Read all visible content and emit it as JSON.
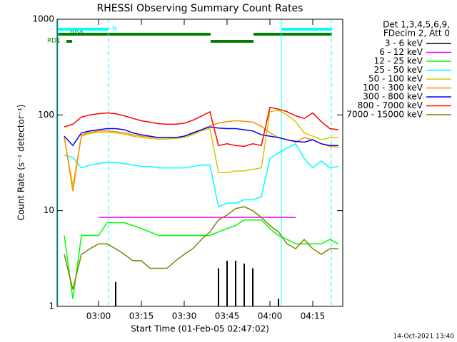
{
  "chart_data": {
    "type": "line",
    "title": "RHESSI Observing Summary Count Rates",
    "xlabel": "Start Time (01-Feb-05 02:47:02)",
    "ylabel": "Count Rate (s⁻¹ detector⁻¹)",
    "info": [
      "Det 1,3,4,5,6,9,",
      "FDecim 2, Att 0"
    ],
    "flags": [
      "N",
      "RD0",
      "RD1"
    ],
    "footer": "14-Oct-2021 13:40",
    "log_y": true,
    "xlim": [
      165.5,
      265.5
    ],
    "xticks": [
      {
        "value": 180,
        "label": "03:00"
      },
      {
        "value": 195,
        "label": "03:15"
      },
      {
        "value": 210,
        "label": "03:30"
      },
      {
        "value": 225,
        "label": "03:45"
      },
      {
        "value": 240,
        "label": "04:00"
      },
      {
        "value": 255,
        "label": "04:15"
      }
    ],
    "ylim": [
      1,
      1000
    ],
    "yticks": [
      1,
      10,
      100,
      1000
    ],
    "x": [
      168,
      171,
      174,
      177,
      180,
      183,
      186,
      189,
      192,
      195,
      198,
      201,
      204,
      207,
      210,
      213,
      216,
      219,
      222,
      225,
      228,
      231,
      234,
      237,
      240,
      243,
      246,
      249,
      252,
      255,
      258,
      261,
      264
    ],
    "series": [
      {
        "name": "3 - 6 keV",
        "color": "#000000",
        "draw": "spikes",
        "values": [
          null,
          null,
          null,
          null,
          null,
          null,
          1.8,
          null,
          null,
          null,
          null,
          null,
          null,
          null,
          null,
          null,
          null,
          null,
          2.5,
          3,
          3,
          2.8,
          2.5,
          null,
          null,
          1.2,
          null,
          null,
          null,
          null,
          null,
          null,
          null
        ]
      },
      {
        "name": "6 - 12 keV",
        "color": "#ff00ff",
        "values": [
          null,
          null,
          null,
          null,
          8.5,
          8.5,
          8.5,
          8.5,
          8.5,
          8.5,
          8.5,
          8.5,
          8.5,
          8.5,
          8.5,
          8.5,
          8.5,
          8.5,
          8.5,
          8.5,
          8.5,
          8.5,
          8.5,
          8.5,
          8.5,
          8.5,
          8.5,
          8.5,
          null,
          null,
          null,
          null,
          null
        ]
      },
      {
        "name": "12 - 25 keV",
        "color": "#00ff00",
        "values": [
          5.5,
          1.2,
          5.5,
          5.5,
          5.5,
          7.5,
          7.5,
          7.5,
          7,
          6.5,
          6,
          5.5,
          5.5,
          5.5,
          5.5,
          5.5,
          5.5,
          5.5,
          6,
          6.5,
          7,
          8,
          8,
          8,
          6.5,
          5.5,
          5,
          4.5,
          4.5,
          4.5,
          4.5,
          5,
          4.5
        ]
      },
      {
        "name": "25 - 50 keV",
        "color": "#00ffff",
        "values": [
          38,
          36,
          28,
          30,
          31,
          32,
          32,
          31,
          30,
          29,
          29,
          28,
          28,
          28,
          28,
          29,
          30,
          30,
          11,
          12,
          12,
          13,
          13,
          14,
          35,
          40,
          45,
          50,
          35,
          28,
          33,
          28,
          29
        ]
      },
      {
        "name": "50 - 100 keV",
        "color": "#d4c800",
        "values": [
          58,
          18,
          60,
          64,
          66,
          66,
          65,
          63,
          60,
          58,
          57,
          56,
          56,
          57,
          58,
          62,
          68,
          72,
          25,
          25,
          26,
          26,
          27,
          28,
          108,
          112,
          100,
          85,
          65,
          60,
          55,
          58,
          58
        ]
      },
      {
        "name": "100 - 300 keV",
        "color": "#ff8c00",
        "values": [
          60,
          16,
          62,
          66,
          68,
          68,
          67,
          65,
          62,
          60,
          59,
          58,
          58,
          58,
          60,
          64,
          70,
          77,
          82,
          85,
          87,
          86,
          84,
          76,
          65,
          58,
          55,
          52,
          58,
          55,
          50,
          47,
          46
        ]
      },
      {
        "name": "300 - 800 keV",
        "color": "#0000ff",
        "values": [
          60,
          48,
          65,
          68,
          70,
          72,
          72,
          70,
          65,
          62,
          60,
          58,
          58,
          58,
          60,
          65,
          70,
          75,
          73,
          72,
          72,
          70,
          68,
          62,
          60,
          58,
          55,
          53,
          52,
          55,
          50,
          48,
          48
        ]
      },
      {
        "name": "800 - 7000 keV",
        "color": "#ff0000",
        "values": [
          75,
          80,
          95,
          100,
          103,
          105,
          103,
          98,
          92,
          87,
          84,
          81,
          80,
          80,
          82,
          88,
          97,
          108,
          48,
          50,
          48,
          47,
          50,
          48,
          120,
          115,
          108,
          98,
          92,
          105,
          85,
          72,
          70
        ]
      },
      {
        "name": "7000 - 15000 keV",
        "color": "#808000",
        "values": [
          3.5,
          1.5,
          3.5,
          4,
          4.5,
          4.5,
          4,
          3.5,
          3,
          3,
          2.5,
          2.5,
          2.5,
          3,
          3.5,
          4,
          5,
          6,
          8,
          9,
          10.5,
          11,
          10,
          8.5,
          7,
          6,
          4.5,
          4,
          5,
          4,
          3.5,
          4,
          4
        ]
      }
    ]
  }
}
